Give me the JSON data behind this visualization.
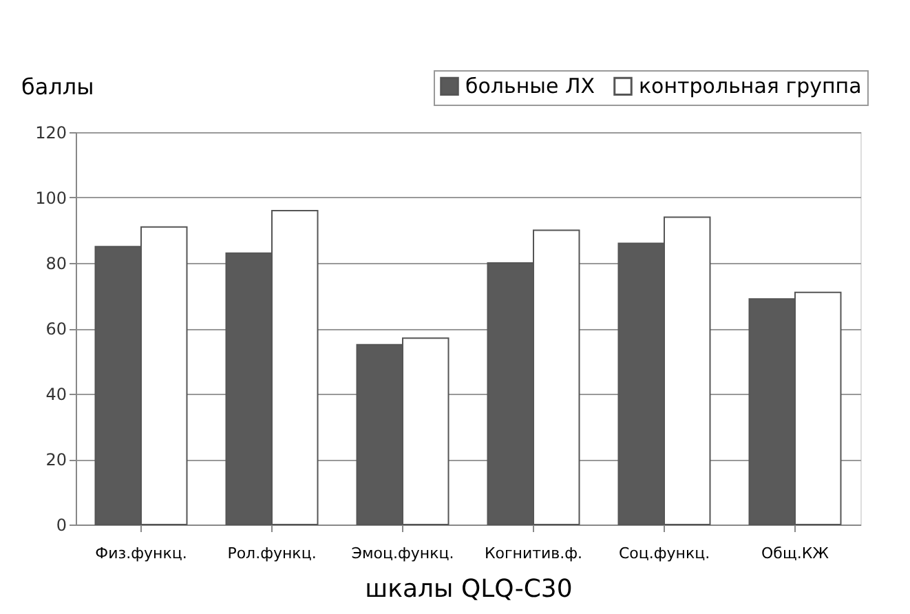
{
  "chart_data": {
    "type": "bar",
    "ylabel": "баллы",
    "xlabel": "шкалы QLQ-C30",
    "categories": [
      "Физ.функц.",
      "Рол.функц.",
      "Эмоц.функц.",
      "Когнитив.ф.",
      "Соц.функц.",
      "Общ.КЖ"
    ],
    "series": [
      {
        "name": "больные ЛХ",
        "color": "#5a5a5a",
        "values": [
          85,
          83,
          55,
          80,
          86,
          69
        ]
      },
      {
        "name": "контрольная группа",
        "color": "#ffffff",
        "values": [
          91,
          96,
          57,
          90,
          94,
          71
        ]
      }
    ],
    "ylim": [
      0,
      120
    ],
    "yticks": [
      0,
      20,
      40,
      60,
      80,
      100,
      120
    ],
    "grid": "y",
    "legend": "top right"
  }
}
